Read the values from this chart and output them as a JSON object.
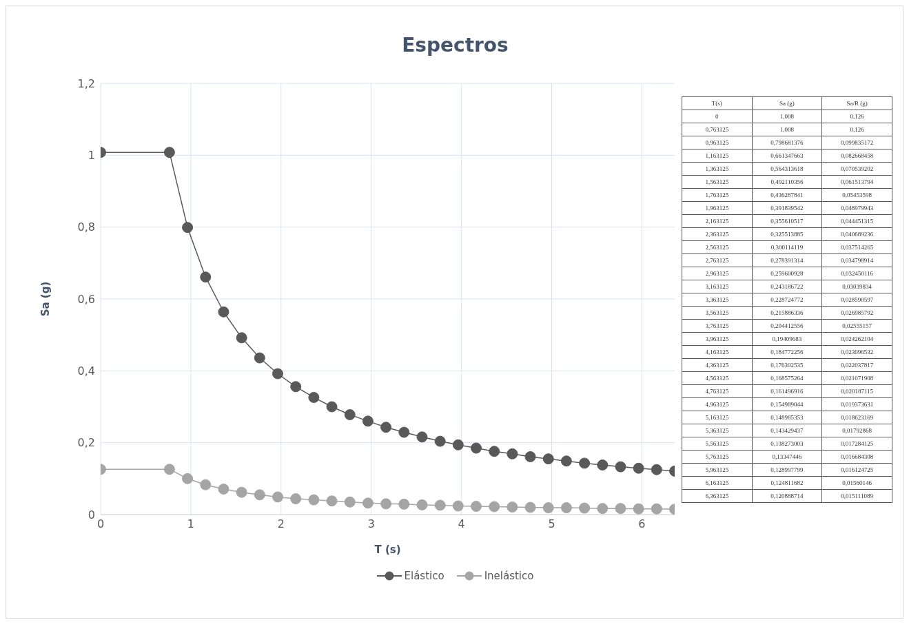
{
  "chart_data": [
    {
      "type": "line",
      "title": "Espectros",
      "xlabel": "T (s)",
      "ylabel": "Sa (g)",
      "x": [
        0,
        0.763125,
        0.963125,
        1.163125,
        1.363125,
        1.563125,
        1.763125,
        1.963125,
        2.163125,
        2.363125,
        2.563125,
        2.763125,
        2.963125,
        3.163125,
        3.363125,
        3.563125,
        3.763125,
        3.963125,
        4.163125,
        4.363125,
        4.563125,
        4.763125,
        4.963125,
        5.163125,
        5.363125,
        5.563125,
        5.763125,
        5.963125,
        6.163125,
        6.363125
      ],
      "series": [
        {
          "name": "Elástico",
          "color": "#595959",
          "values": [
            1.008,
            1.008,
            0.799,
            0.661,
            0.564,
            0.492,
            0.436,
            0.392,
            0.356,
            0.326,
            0.3,
            0.278,
            0.26,
            0.243,
            0.229,
            0.216,
            0.204,
            0.194,
            0.185,
            0.176,
            0.169,
            0.161,
            0.155,
            0.149,
            0.143,
            0.138,
            0.133,
            0.129,
            0.125,
            0.121
          ]
        },
        {
          "name": "Inelástico",
          "color": "#a5a5a5",
          "values": [
            0.126,
            0.126,
            0.1,
            0.083,
            0.071,
            0.062,
            0.055,
            0.049,
            0.044,
            0.041,
            0.038,
            0.035,
            0.032,
            0.03,
            0.029,
            0.027,
            0.026,
            0.024,
            0.023,
            0.022,
            0.021,
            0.02,
            0.019,
            0.019,
            0.018,
            0.017,
            0.017,
            0.016,
            0.016,
            0.015
          ]
        }
      ],
      "xlim": [
        0,
        6.363125
      ],
      "xticks": [
        0,
        1,
        2,
        3,
        4,
        5,
        6
      ],
      "ylim": [
        0,
        1.2
      ],
      "yticks": [
        0,
        {
          "value": 0.2,
          "label": "0,2"
        },
        {
          "value": 0.4,
          "label": "0,4"
        },
        {
          "value": 0.6,
          "label": "0,6"
        },
        {
          "value": 0.8,
          "label": "0,8"
        },
        1,
        {
          "value": 1.2,
          "label": "1,2"
        }
      ],
      "grid": true,
      "legend": "bottom",
      "marker": "circle",
      "line_style": "solid"
    },
    {
      "type": "other",
      "annotations": [
        "T(s)",
        "Sa (g)",
        "Sa/R (g)",
        "0",
        "1,008",
        "0,126",
        "0,763125",
        "1,008",
        "0,126",
        "0,963125",
        "0,798681376",
        "0,099835172",
        "1,163125",
        "0,661347663",
        "0,082668458",
        "1,363125",
        "0,564313618",
        "0,070539202",
        "1,563125",
        "0,492110356",
        "0,061513794",
        "1,763125",
        "0,436287841",
        "0,05453598",
        "1,963125",
        "0,391839542",
        "0,048979943",
        "2,163125",
        "0,355610517",
        "0,044451315",
        "2,363125",
        "0,325513885",
        "0,040689236",
        "2,563125",
        "0,300114119",
        "0,037514265",
        "2,763125",
        "0,278391314",
        "0,034798914",
        "2,963125",
        "0,259600928",
        "0,032450116",
        "3,163125",
        "0,243186722",
        "0,03039834",
        "3,363125",
        "0,228724772",
        "0,028590597",
        "3,563125",
        "0,215886336",
        "0,026985792",
        "3,763125",
        "0,204412556",
        "0,02555157",
        "3,963125",
        "0,19409683",
        "0,024262104",
        "4,163125",
        "0,184772256",
        "0,023096532",
        "4,363125",
        "0,176302535",
        "0,022037817",
        "4,563125",
        "0,168575264",
        "0,021071908",
        "4,763125",
        "0,161496916",
        "0,020187115",
        "4,963125",
        "0,154989044",
        "0,019373631",
        "5,163125",
        "0,148985353",
        "0,018623169",
        "5,363125",
        "0,143429437",
        "0,01792868",
        "5,563125",
        "0,138273003",
        "0,017284125",
        "5,763125",
        "0,13347446",
        "0,016684308",
        "5,963125",
        "0,128997799",
        "0,016124725",
        "6,163125",
        "0,124811682",
        "0,01560146",
        "6,363125",
        "0,120888714",
        "0,015111089"
      ]
    }
  ]
}
